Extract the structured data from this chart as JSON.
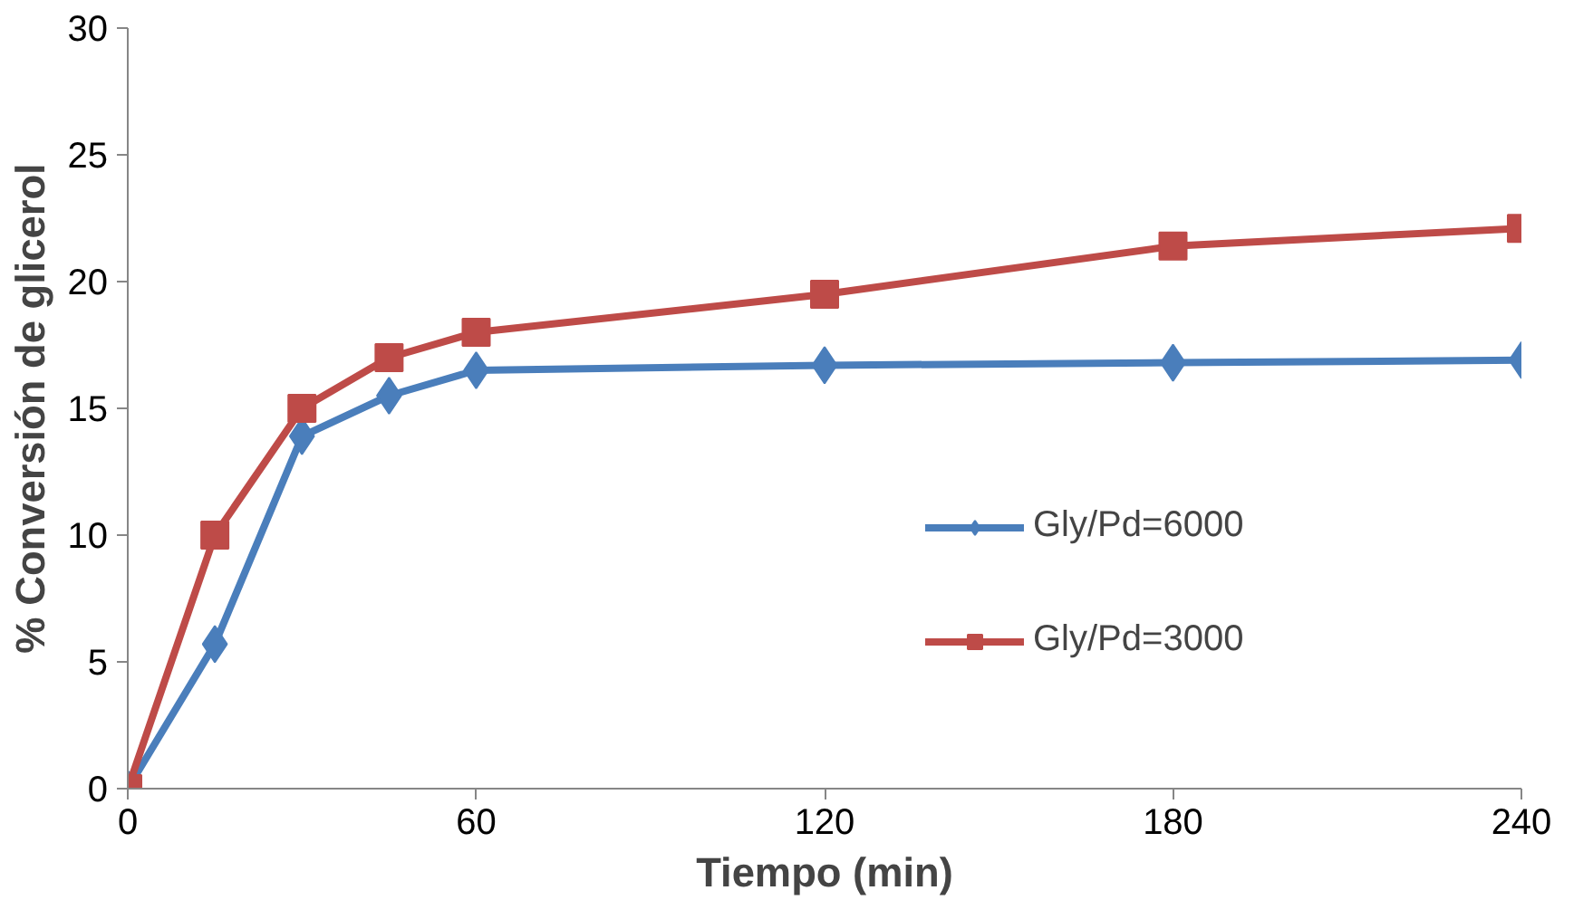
{
  "chart_data": {
    "type": "line",
    "xlabel": "Tiempo (min)",
    "ylabel": "% Conversión de glicerol",
    "x": [
      0,
      15,
      30,
      45,
      60,
      120,
      180,
      240
    ],
    "series": [
      {
        "name": "Gly/Pd=6000",
        "color": "#4a7ebb",
        "marker": "diamond",
        "values": [
          0,
          5.7,
          13.9,
          15.5,
          16.5,
          16.7,
          16.8,
          16.9
        ]
      },
      {
        "name": "Gly/Pd=3000",
        "color": "#be4b48",
        "marker": "square",
        "values": [
          0,
          10.0,
          15.0,
          17.0,
          18.0,
          19.5,
          21.4,
          22.1
        ]
      }
    ],
    "xlim": [
      0,
      240
    ],
    "xticks": [
      0,
      60,
      120,
      180,
      240
    ],
    "ylim": [
      0,
      30
    ],
    "yticks": [
      0,
      5,
      10,
      15,
      20,
      25,
      30
    ],
    "grid": false,
    "legend": "right",
    "line_style": "solid"
  }
}
